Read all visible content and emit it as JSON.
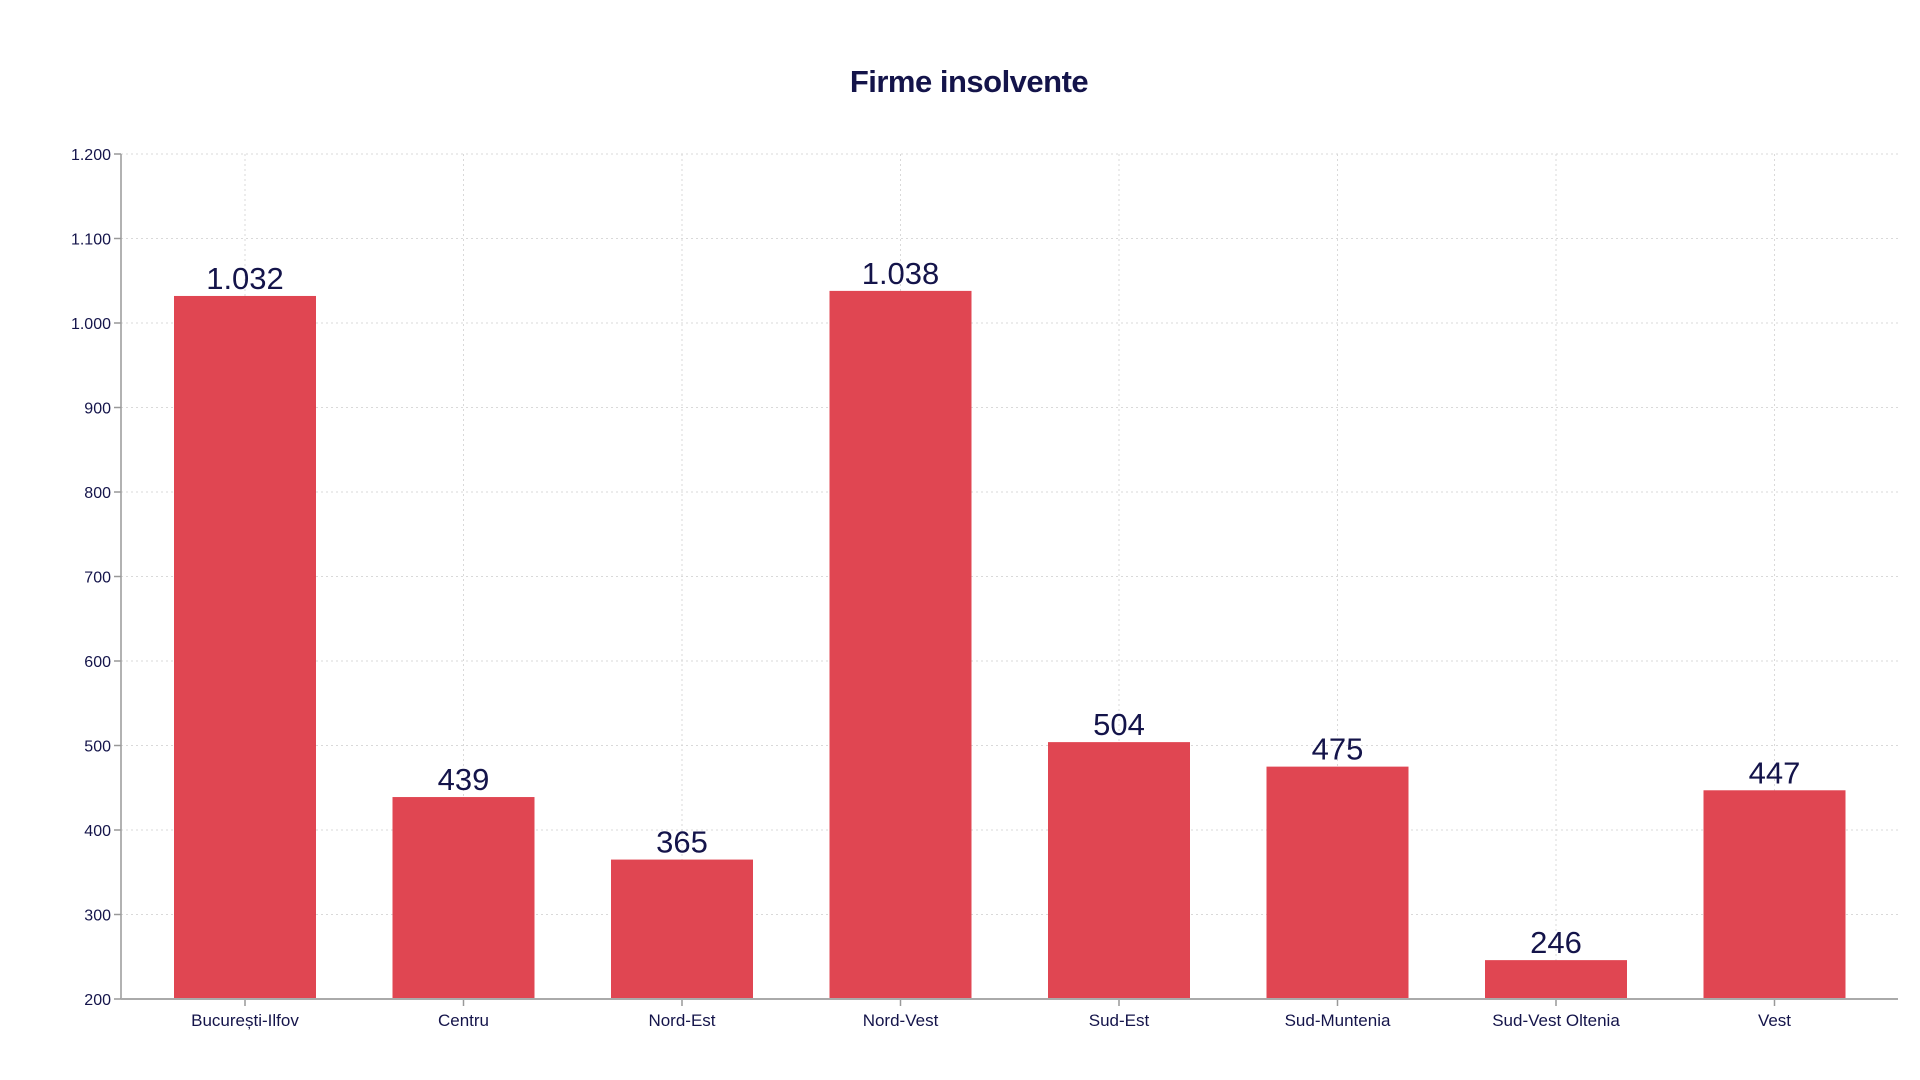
{
  "chart_data": {
    "type": "bar",
    "title": "Firme insolvente",
    "xlabel": "",
    "ylabel": "",
    "categories": [
      "București-Ilfov",
      "Centru",
      "Nord-Est",
      "Nord-Vest",
      "Sud-Est",
      "Sud-Muntenia",
      "Sud-Vest Oltenia",
      "Vest"
    ],
    "values": [
      1032,
      439,
      365,
      1038,
      504,
      475,
      246,
      447
    ],
    "value_labels": [
      "1.032",
      "439",
      "365",
      "1.038",
      "504",
      "475",
      "246",
      "447"
    ],
    "ylim": [
      200,
      1200
    ],
    "yticks": [
      200,
      300,
      400,
      500,
      600,
      700,
      800,
      900,
      1000,
      1100,
      1200
    ],
    "ytick_labels": [
      "200",
      "300",
      "400",
      "500",
      "600",
      "700",
      "800",
      "900",
      "1.000",
      "1.100",
      "1.200"
    ],
    "grid": true,
    "legend": null,
    "colors": {
      "bar": "#e04652",
      "text": "#14144a",
      "grid": "#d9d9d9",
      "axis": "#999999"
    }
  }
}
